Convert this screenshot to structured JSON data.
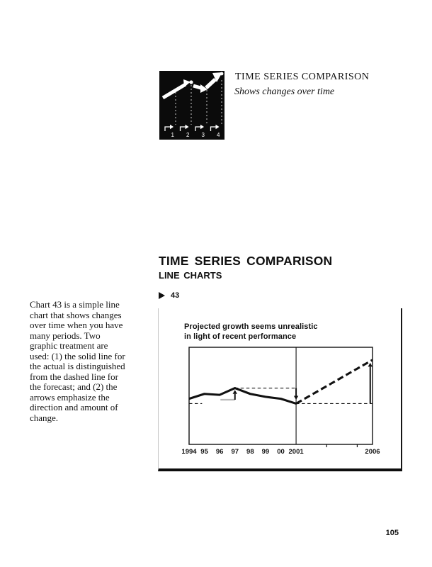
{
  "colors": {
    "ink": "#111111",
    "muted_gray": "#b8b8b8"
  },
  "header": {
    "title": "TIME SERIES COMPARISON",
    "subtitle": "Shows changes over time",
    "icon": "time-series-chart-icon",
    "icon_steps": [
      "1",
      "2",
      "3",
      "4"
    ]
  },
  "section": {
    "title": "TIME SERIES COMPARISON",
    "subtitle": "LINE CHARTS",
    "figure_number": "43"
  },
  "margin_note": {
    "lines": [
      "Chart 43 is a simple line",
      "chart that shows changes",
      "over time when you have",
      "many periods. Two",
      "graphic treatment are",
      "used: (1) the solid line for",
      "the actual is distinguished",
      "from the dashed line for",
      "the forecast; and (2) the",
      "arrows emphasize the",
      "direction and amount of",
      "change."
    ]
  },
  "page": {
    "number": "105"
  },
  "chart_data": {
    "type": "line",
    "title_lines": [
      "Projected growth seems unrealistic",
      "in light of recent performance"
    ],
    "xlim": [
      1994,
      2006
    ],
    "ylim": [
      0,
      100
    ],
    "grid": false,
    "legend": "none",
    "divider_year": 2001,
    "series": [
      {
        "name": "actual",
        "style": "solid",
        "x": [
          1994,
          1995,
          1996,
          1997,
          1998,
          1999,
          2000,
          2001
        ],
        "values": [
          47,
          52,
          51,
          58,
          52,
          49,
          47,
          42
        ]
      },
      {
        "name": "forecast",
        "style": "dashed",
        "x": [
          2001,
          2006
        ],
        "values": [
          42,
          87
        ]
      }
    ],
    "x_ticks": [
      {
        "year": 1994,
        "label": "1994"
      },
      {
        "year": 1995,
        "label": "95"
      },
      {
        "year": 1996,
        "label": "96"
      },
      {
        "year": 1997,
        "label": "97"
      },
      {
        "year": 1998,
        "label": "98"
      },
      {
        "year": 1999,
        "label": "99"
      },
      {
        "year": 2000,
        "label": "00"
      },
      {
        "year": 2001,
        "label": "2001"
      },
      {
        "year": 2006,
        "label": "2006"
      }
    ],
    "minor_tick_years": [
      2003,
      2005
    ],
    "reference_lines": [
      {
        "name": "baseline-1994",
        "value": 42,
        "from": 1994,
        "to": 1994.85,
        "color": "#111111",
        "width": 1.1,
        "dash": "4.5 3.5"
      },
      {
        "name": "baseline-gray-pre-peak",
        "value": 46,
        "from": 1996.05,
        "to": 1997,
        "color": "#b8b8b8",
        "width": 2.2,
        "dash": "none"
      },
      {
        "name": "peak-level-1997",
        "value": 58,
        "from": 1997,
        "to": 2001,
        "color": "#111111",
        "width": 1.1,
        "dash": "4.5 3.5"
      },
      {
        "name": "baseline-2001-level",
        "value": 42,
        "from": 2001,
        "to": 2006,
        "color": "#111111",
        "width": 1.1,
        "dash": "4.5 3.5"
      }
    ],
    "arrows": [
      {
        "name": "rise-to-1997-peak",
        "direction": "up",
        "year": 1997,
        "from": 46,
        "to": 56
      },
      {
        "name": "drop-to-2001",
        "direction": "down",
        "year": 2001,
        "from": 58,
        "to": 46
      },
      {
        "name": "forecast-rise-2006",
        "direction": "up",
        "year": 2005.85,
        "from": 42,
        "to": 84
      }
    ]
  }
}
